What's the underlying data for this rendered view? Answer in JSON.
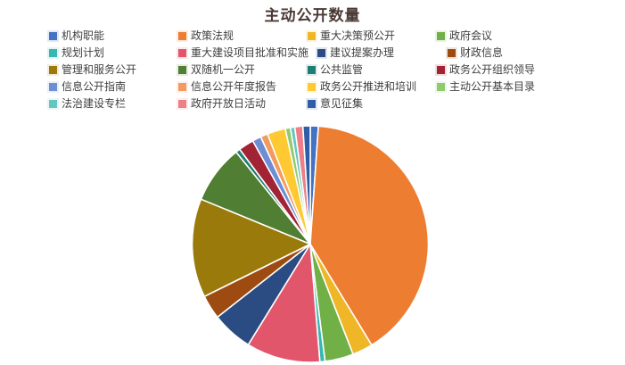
{
  "page": {
    "background": "#ffffff"
  },
  "chart_data": {
    "type": "pie",
    "title": "主动公开数量",
    "title_color": "#4a3933",
    "legend_position": "top",
    "legend_text_color": "#3f3f3f",
    "grid": false,
    "items": [
      {
        "label": "机构职能",
        "color": "#4472C4",
        "percent": 1.1
      },
      {
        "label": "政策法规",
        "color": "#ED7D31",
        "percent": 40.2
      },
      {
        "label": "重大决策预公开",
        "color": "#EFB727",
        "percent": 2.8
      },
      {
        "label": "政府会议",
        "color": "#71AF47",
        "percent": 3.9
      },
      {
        "label": "规划计划",
        "color": "#35B8B0",
        "percent": 0.7
      },
      {
        "label": "重大建设项目批准和实施",
        "color": "#E2566B",
        "percent": 10.1
      },
      {
        "label": "建议提案办理",
        "color": "#2B4C82",
        "percent": 5.6
      },
      {
        "label": "财政信息",
        "color": "#9E4B12",
        "percent": 3.3
      },
      {
        "label": "管理和服务公开",
        "color": "#9A7A0B",
        "percent": 13.5
      },
      {
        "label": "双随机一公开",
        "color": "#507E32",
        "percent": 8.0
      },
      {
        "label": "公共监管",
        "color": "#1E7E74",
        "percent": 0.6
      },
      {
        "label": "政务公开组织领导",
        "color": "#A22334",
        "percent": 2.1
      },
      {
        "label": "信息公开指南",
        "color": "#6E8ED4",
        "percent": 1.2
      },
      {
        "label": "信息公开年度报告",
        "color": "#F29B60",
        "percent": 1.0
      },
      {
        "label": "政务公开推进和培训",
        "color": "#FFC933",
        "percent": 2.5
      },
      {
        "label": "主动公开基本目录",
        "color": "#8FCB6D",
        "percent": 0.7
      },
      {
        "label": "法治建设专栏",
        "color": "#66C6BF",
        "percent": 0.6
      },
      {
        "label": "政府开放日活动",
        "color": "#EE7F87",
        "percent": 1.1
      },
      {
        "label": "意见征集",
        "color": "#2E5EA8",
        "percent": 1.0
      }
    ]
  }
}
